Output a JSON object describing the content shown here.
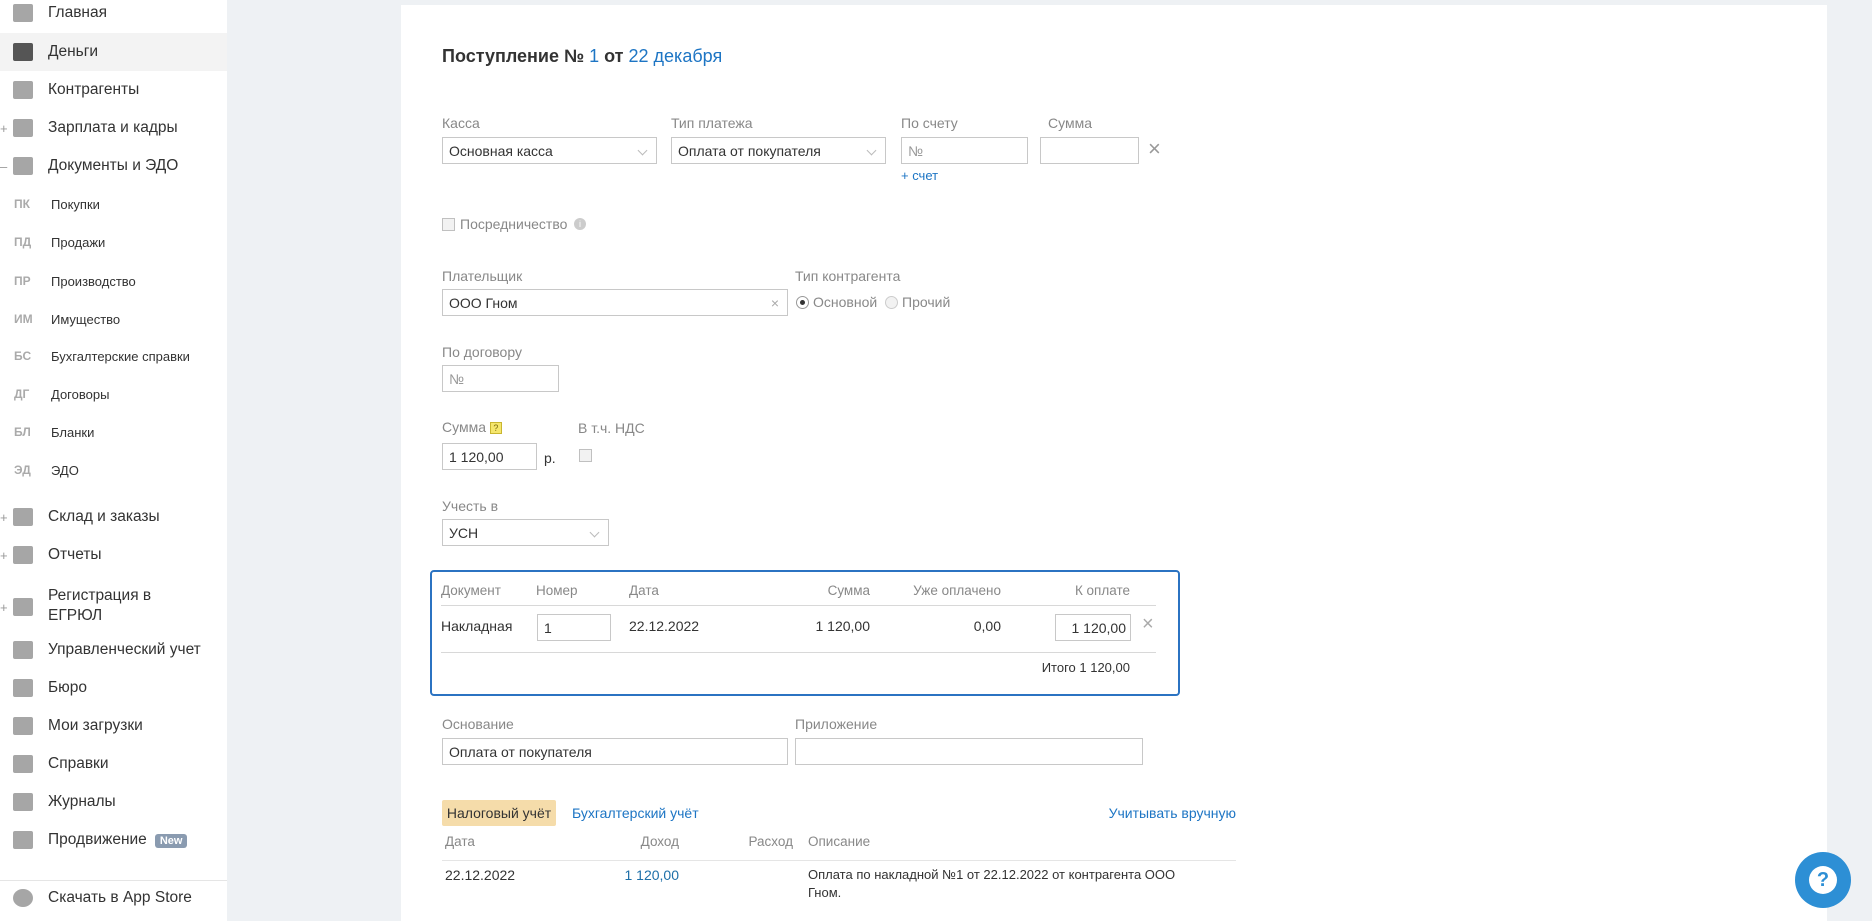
{
  "sidebar": {
    "items": [
      {
        "label": "Главная",
        "icon": "home-icon"
      },
      {
        "label": "Деньги",
        "icon": "money-icon",
        "active": true
      },
      {
        "label": "Контрагенты",
        "icon": "contractors-icon"
      },
      {
        "label": "Зарплата и кадры",
        "icon": "wallet-icon",
        "toggle": "+"
      },
      {
        "label": "Документы и ЭДО",
        "icon": "folder-icon",
        "toggle": "–"
      }
    ],
    "subitems": [
      {
        "abbr": "ПК",
        "label": "Покупки"
      },
      {
        "abbr": "ПД",
        "label": "Продажи"
      },
      {
        "abbr": "ПР",
        "label": "Производство"
      },
      {
        "abbr": "ИМ",
        "label": "Имущество"
      },
      {
        "abbr": "БС",
        "label": "Бухгалтерские справки"
      },
      {
        "abbr": "ДГ",
        "label": "Договоры"
      },
      {
        "abbr": "БЛ",
        "label": "Бланки"
      },
      {
        "abbr": "ЭД",
        "label": "ЭДО"
      }
    ],
    "items2": [
      {
        "label": "Склад и заказы",
        "toggle": "+"
      },
      {
        "label": "Отчеты",
        "toggle": "+"
      },
      {
        "label": "Регистрация в",
        "label2": "ЕГРЮЛ",
        "toggle": "+"
      },
      {
        "label": "Управленческий учет"
      },
      {
        "label": "Бюро"
      },
      {
        "label": "Мои загрузки"
      },
      {
        "label": "Справки"
      },
      {
        "label": "Журналы"
      },
      {
        "label": "Продвижение",
        "badge": "New"
      }
    ],
    "appstore": "Скачать в App Store"
  },
  "title": {
    "prefix": "Поступление №",
    "number": "1",
    "mid": "от",
    "date": "22 декабря"
  },
  "form": {
    "kassa_label": "Касса",
    "kassa_value": "Основная касса",
    "type_label": "Тип платежа",
    "type_value": "Оплата от покупателя",
    "invoice_label": "По счету",
    "invoice_placeholder": "№",
    "add_invoice": "+ счет",
    "sum_label": "Сумма",
    "intermediary": "Посредничество",
    "payer_label": "Плательщик",
    "payer_value": "ООО Гном",
    "ctype_label": "Тип контрагента",
    "ctype_main": "Основной",
    "ctype_other": "Прочий",
    "ctype_selected": "Основной",
    "contract_label": "По договору",
    "contract_placeholder": "№",
    "amount_label": "Сумма",
    "amount_value": "1 120,00",
    "currency": "р.",
    "vat_label": "В т.ч. НДС",
    "account_in_label": "Учесть в",
    "account_in_value": "УСН",
    "basis_label": "Основание",
    "basis_value": "Оплата от покупателя",
    "attachment_label": "Приложение",
    "attachment_value": ""
  },
  "docs": {
    "headers": [
      "Документ",
      "Номер",
      "Дата",
      "Сумма",
      "Уже оплачено",
      "К оплате"
    ],
    "row": {
      "doc": "Накладная",
      "number": "1",
      "date": "22.12.2022",
      "sum": "1 120,00",
      "paid": "0,00",
      "to_pay": "1 120,00"
    },
    "total": "Итого 1 120,00"
  },
  "tax": {
    "tab_tax": "Налоговый учёт",
    "tab_acc": "Бухгалтерский учёт",
    "manual": "Учитывать вручную",
    "headers": [
      "Дата",
      "Доход",
      "Расход",
      "Описание"
    ],
    "row": {
      "date": "22.12.2022",
      "income": "1 120,00",
      "expense": "",
      "desc1": "Оплата по накладной №1 от 22.12.2022 от контрагента ООО",
      "desc2": "Гном."
    }
  },
  "help": "?",
  "colors": {
    "accent": "#1d75c4",
    "table_border": "#2b73c2",
    "tab_active": "#f5dcaa",
    "help_bg": "#2d8fd5"
  }
}
